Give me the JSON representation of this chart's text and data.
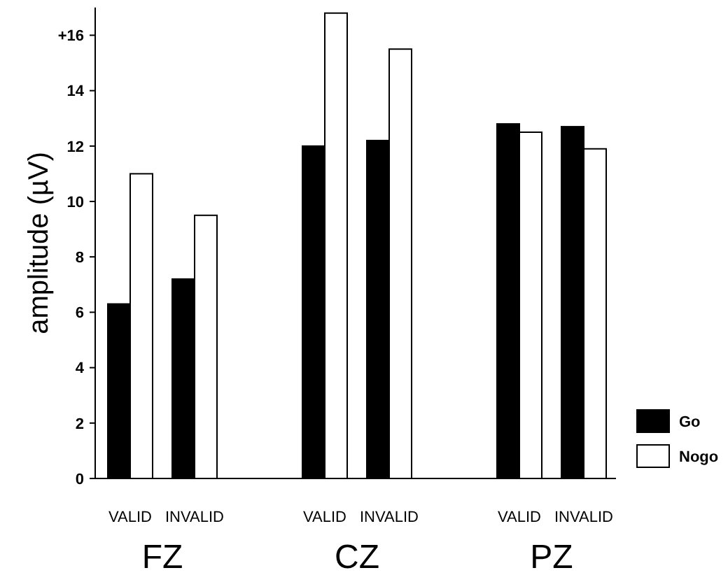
{
  "chart_data": {
    "type": "bar",
    "ylabel": "amplitude (µV)",
    "categories": [
      "VALID",
      "INVALID",
      "VALID",
      "INVALID",
      "VALID",
      "INVALID"
    ],
    "series": [
      {
        "name": "Go",
        "color": "#000000",
        "values": [
          6.3,
          7.2,
          12.0,
          12.2,
          12.8,
          12.7
        ]
      },
      {
        "name": "Nogo",
        "color": "#ffffff",
        "values": [
          11.0,
          9.5,
          16.8,
          15.5,
          12.5,
          11.9
        ]
      }
    ],
    "ylim": [
      0,
      17
    ],
    "yticks": [
      0,
      2,
      4,
      6,
      8,
      10,
      12,
      14,
      {
        "value": 16,
        "label": "+16"
      }
    ],
    "annotations": [
      "FZ",
      "CZ",
      "PZ"
    ],
    "grid": false,
    "legend": "bottom right"
  }
}
